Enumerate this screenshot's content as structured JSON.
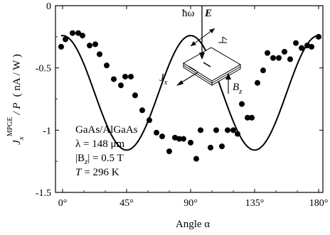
{
  "chart_data": {
    "type": "scatter",
    "title": "",
    "xlabel": "Angle α",
    "ylabel": {
      "main": "J",
      "sub": "x",
      "sup": "MPGE",
      "rest": "/ P",
      "unit": "( nA / W )"
    },
    "xlim": [
      -5,
      183
    ],
    "ylim": [
      -1.5,
      0
    ],
    "x_ticks": [
      0,
      45,
      90,
      135,
      180
    ],
    "x_tick_labels": [
      "0°",
      "45°",
      "90°",
      "135°",
      "180°"
    ],
    "y_ticks": [
      0,
      -0.5,
      -1,
      -1.5
    ],
    "y_tick_labels": [
      "0",
      "-0.5",
      "-1",
      "-1.5"
    ],
    "grid": false,
    "series": [
      {
        "kind": "points",
        "x": [
          -1,
          2,
          7,
          11,
          14,
          19,
          23,
          26,
          31,
          36,
          41,
          44,
          48,
          51,
          56,
          61,
          66,
          70,
          75,
          79,
          82,
          85,
          90,
          94,
          97,
          104,
          108,
          112,
          116,
          120,
          123,
          126,
          130,
          133,
          137,
          141,
          144,
          148,
          152,
          156,
          160,
          164,
          168,
          172,
          175,
          180
        ],
        "y": [
          -0.33,
          -0.27,
          -0.22,
          -0.22,
          -0.24,
          -0.32,
          -0.31,
          -0.39,
          -0.48,
          -0.59,
          -0.64,
          -0.57,
          -0.57,
          -0.72,
          -0.84,
          -0.92,
          -1.02,
          -1.05,
          -1.17,
          -1.06,
          -1.07,
          -1.07,
          -1.1,
          -1.23,
          -1.0,
          -1.14,
          -1.0,
          -1.13,
          -1.0,
          -1.0,
          -1.03,
          -0.79,
          -0.9,
          -0.9,
          -0.62,
          -0.52,
          -0.38,
          -0.42,
          -0.42,
          -0.37,
          -0.43,
          -0.3,
          -0.34,
          -0.32,
          -0.33,
          -0.25
        ]
      },
      {
        "kind": "fit-curve",
        "formula": "-0.70 + 0.46*cos(4*pi*alpha/180)"
      }
    ],
    "annotations": {
      "sample": "GaAs/AlGaAs",
      "lambda": "λ = 148 μm",
      "field_prefix": "|B",
      "field_sub": "z",
      "field_suffix": "| = 0.5 T",
      "temp_var": "T",
      "temp_value": "= 296 K"
    },
    "inset": {
      "photon": "ħω",
      "efield": "E",
      "current": "J",
      "current_sub": "x",
      "bfield": "B",
      "bfield_sub": "z"
    }
  }
}
